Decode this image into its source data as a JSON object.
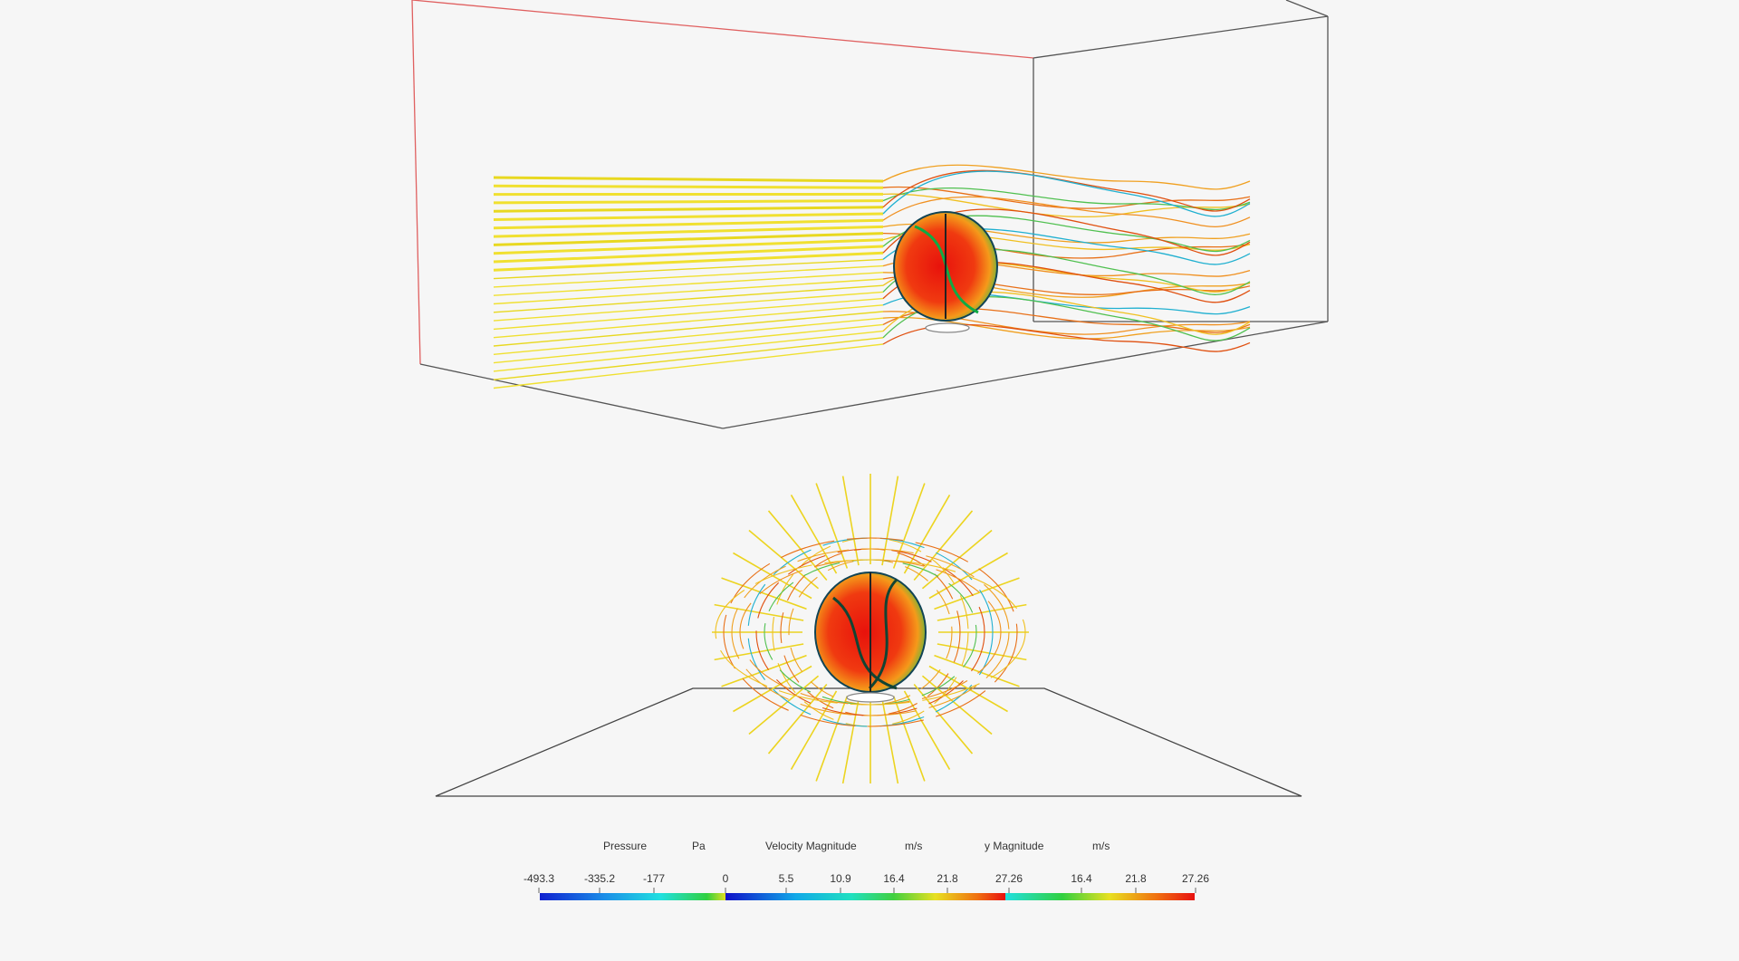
{
  "legend": {
    "pressure": {
      "title": "Pressure",
      "unit": "Pa",
      "ticks": [
        "-493.3",
        "-335.2",
        "-177",
        "0"
      ]
    },
    "velocity": {
      "title": "Velocity Magnitude",
      "unit": "m/s",
      "ticks": [
        "5.5",
        "10.9",
        "16.4",
        "21.8",
        "27.26"
      ]
    },
    "velocity_y": {
      "title": "y Magnitude",
      "unit": "m/s",
      "ticks": [
        "16.4",
        "21.8",
        "27.26"
      ]
    }
  }
}
